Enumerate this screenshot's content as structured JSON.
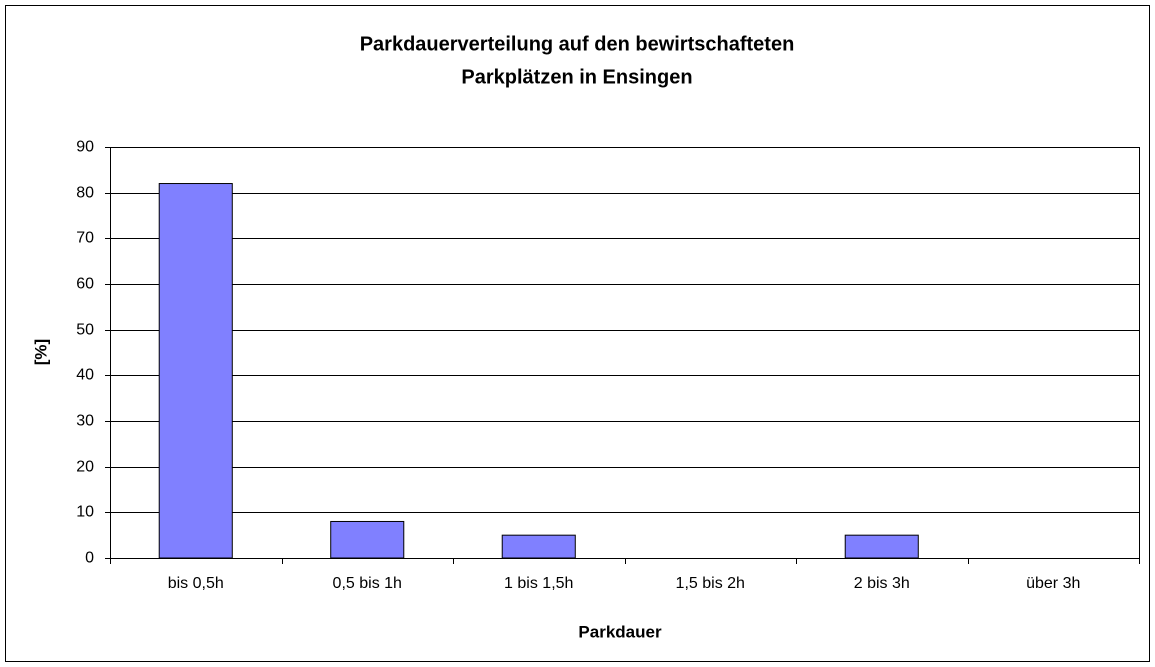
{
  "chart_data": {
    "type": "bar",
    "title": [
      "Parkdauerverteilung auf den bewirtschafteten",
      "Parkplätzen in Ensingen"
    ],
    "x_label": "Parkdauer",
    "y_label": "[%]",
    "categories": [
      "bis 0,5h",
      "0,5 bis 1h",
      "1 bis 1,5h",
      "1,5 bis 2h",
      "2 bis 3h",
      "über 3h"
    ],
    "values": [
      82,
      8,
      5,
      0,
      5,
      0
    ],
    "color": "#8080ff",
    "ylim": [
      0,
      90
    ],
    "yticks": [
      0,
      10,
      20,
      30,
      40,
      50,
      60,
      70,
      80,
      90
    ],
    "grid": true
  }
}
